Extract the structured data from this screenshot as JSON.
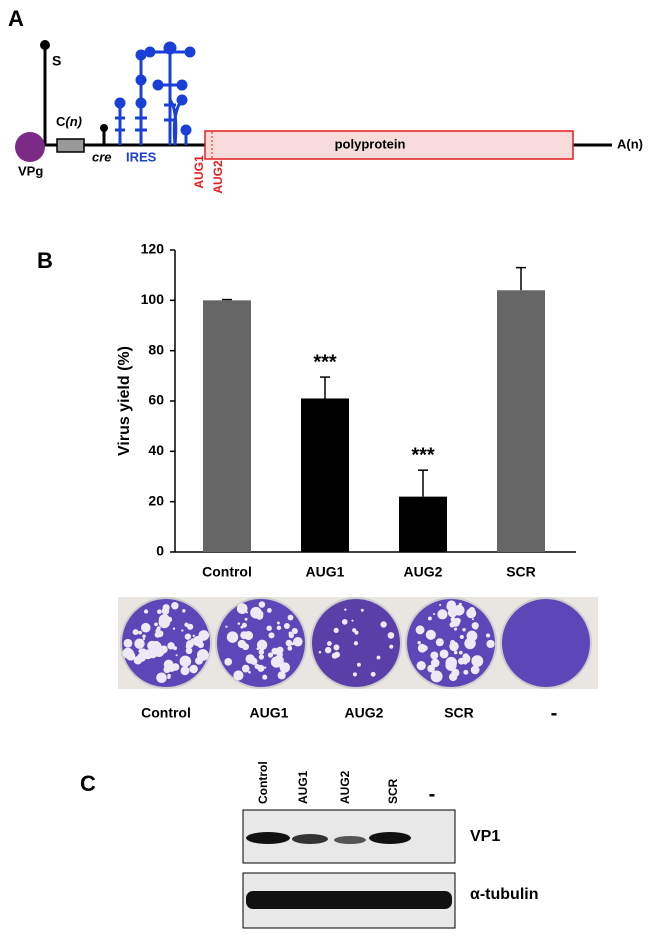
{
  "panel_labels": [
    "A",
    "B",
    "C"
  ],
  "diagram": {
    "stem_label": "S",
    "vpg": "VPg",
    "c_box": "C",
    "c_box_suffix": "(n)",
    "cre": "cre",
    "ires": "IRES",
    "aug1": "AUG1",
    "aug2": "AUG2",
    "polyprotein": "polyprotein",
    "poly_a": "A(n)"
  },
  "chart_data": {
    "type": "bar",
    "ylabel": "Virus yield (%)",
    "categories": [
      "Control",
      "AUG1",
      "AUG2",
      "SCR"
    ],
    "values": [
      100,
      61,
      22,
      104
    ],
    "errors": [
      0.3,
      8.5,
      10.5,
      9
    ],
    "colors": [
      "#666666",
      "#000000",
      "#000000",
      "#666666"
    ],
    "significance": [
      null,
      "***",
      "***",
      null
    ],
    "ylim": [
      0,
      120
    ],
    "yticks": [
      0,
      20,
      40,
      60,
      80,
      100,
      120
    ],
    "grid": false
  },
  "plaques": {
    "labels": [
      "Control",
      "AUG1",
      "AUG2",
      "SCR",
      "-"
    ]
  },
  "blot": {
    "lanes": [
      "Control",
      "AUG1",
      "AUG2",
      "SCR",
      "-"
    ],
    "rows": [
      "VP1",
      "α-tubulin"
    ]
  }
}
